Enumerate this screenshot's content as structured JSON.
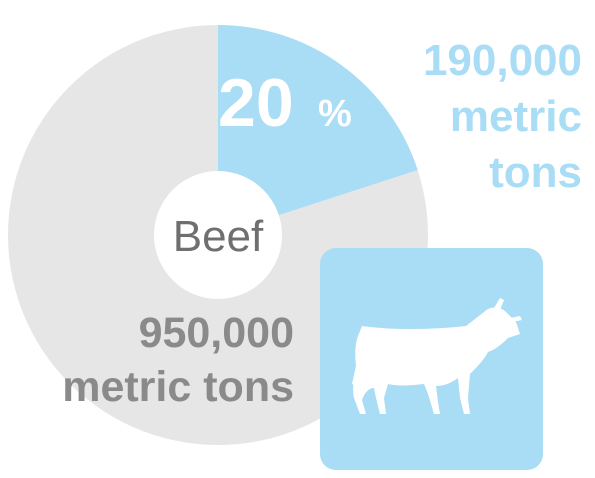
{
  "chart_data": {
    "type": "pie",
    "center_label": "Beef",
    "slices": [
      {
        "value": 20,
        "percent_text": "20",
        "percent_symbol": "%",
        "amount": "190,000",
        "unit_lines": [
          "metric",
          "tons"
        ],
        "color": "#a9dcf5"
      },
      {
        "value": 80,
        "amount": "950,000",
        "unit_lines": [
          "metric tons"
        ],
        "color": "#e6e6e6"
      }
    ],
    "donut_hole_color": "#ffffff",
    "label_colors": {
      "highlight": "#a9dcf5",
      "remainder": "#8a8a8a",
      "center": "#6f6f6f"
    }
  },
  "icon": {
    "name": "cow-icon",
    "background": "#a9dcf5",
    "color": "#ffffff"
  }
}
